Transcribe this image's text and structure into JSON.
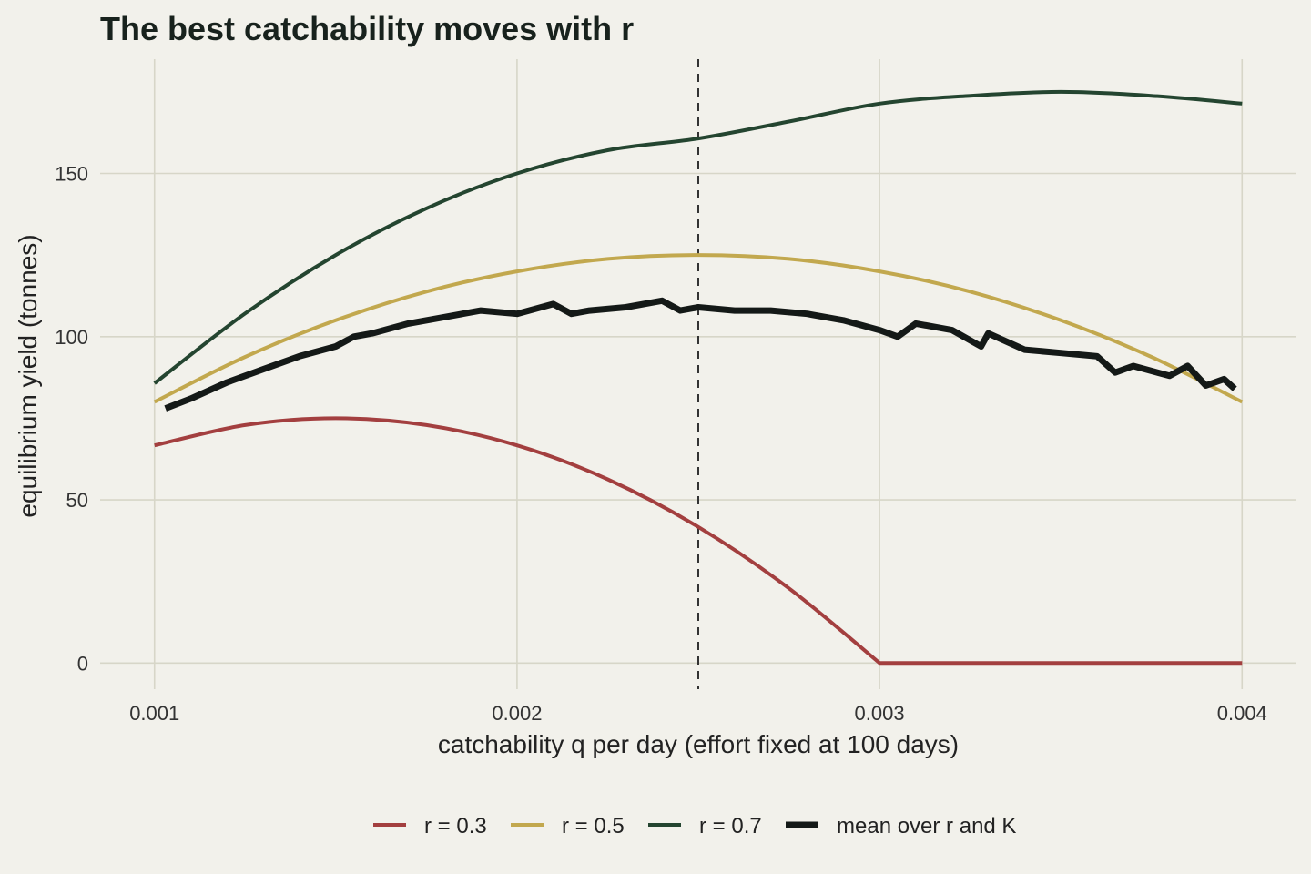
{
  "chart_data": {
    "type": "line",
    "title": "The best catchability moves with r",
    "xlabel": "catchability q per day (effort fixed at 100 days)",
    "ylabel": "equilibrium yield (tonnes)",
    "xlim": [
      0.00085,
      0.00415
    ],
    "ylim": [
      -8,
      185
    ],
    "x_ticks": [
      0.001,
      0.002,
      0.003,
      0.004
    ],
    "x_tick_labels": [
      "0.001",
      "0.002",
      "0.003",
      "0.004"
    ],
    "y_ticks": [
      0,
      50,
      100,
      150
    ],
    "y_tick_labels": [
      "0",
      "50",
      "100",
      "150"
    ],
    "grid": true,
    "legend_position": "bottom",
    "reference_line": {
      "x": 0.0025,
      "style": "dashed",
      "color": "#333333"
    },
    "x": [
      0.001,
      0.00125,
      0.0015,
      0.00175,
      0.002,
      0.00225,
      0.0025,
      0.00275,
      0.003,
      0.00325,
      0.0035,
      0.00375,
      0.004
    ],
    "series": [
      {
        "name": "r = 0.3",
        "color": "#a33f3f",
        "width": 4,
        "values": [
          66.7,
          72.9,
          75.0,
          72.9,
          66.7,
          56.3,
          41.7,
          22.9,
          0,
          0,
          0,
          0,
          0
        ]
      },
      {
        "name": "r = 0.5",
        "color": "#c2a84e",
        "width": 4,
        "values": [
          80.0,
          93.8,
          105.0,
          113.8,
          120.0,
          123.8,
          125.0,
          123.8,
          120.0,
          113.8,
          105.0,
          93.8,
          80.0
        ]
      },
      {
        "name": "r = 0.7",
        "color": "#244530",
        "width": 4,
        "values": [
          85.7,
          107.1,
          125.0,
          139.3,
          150.0,
          157.1,
          160.7,
          165.9,
          171.4,
          173.8,
          175.0,
          173.8,
          171.4
        ]
      },
      {
        "name": "mean over r and K",
        "color": "#141917",
        "width": 7,
        "x": [
          0.00103,
          0.0011,
          0.0012,
          0.0013,
          0.0014,
          0.0015,
          0.00155,
          0.0016,
          0.0017,
          0.0018,
          0.0019,
          0.002,
          0.0021,
          0.00215,
          0.0022,
          0.0023,
          0.0024,
          0.00245,
          0.0025,
          0.0026,
          0.0027,
          0.0028,
          0.0029,
          0.003,
          0.00305,
          0.0031,
          0.0032,
          0.00328,
          0.0033,
          0.0034,
          0.0035,
          0.0036,
          0.00365,
          0.0037,
          0.0038,
          0.00385,
          0.0039,
          0.00395,
          0.00398
        ],
        "values": [
          78,
          81,
          86,
          90,
          94,
          97,
          100,
          101,
          104,
          106,
          108,
          107,
          110,
          107,
          108,
          109,
          111,
          108,
          109,
          108,
          108,
          107,
          105,
          102,
          100,
          104,
          102,
          97,
          101,
          96,
          95,
          94,
          89,
          91,
          88,
          91,
          85,
          87,
          84
        ]
      }
    ]
  }
}
